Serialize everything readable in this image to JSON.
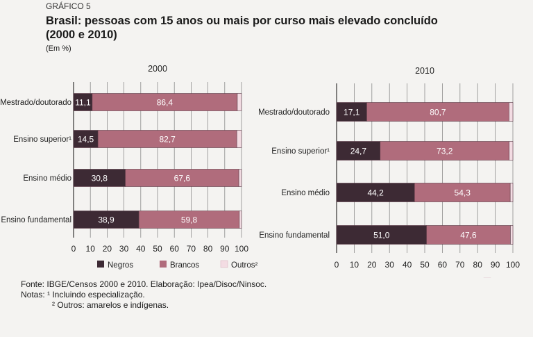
{
  "header": {
    "kicker": "GRÁFICO 5",
    "title_line1": "Brasil: pessoas com 15 anos ou mais por curso mais elevado concluído",
    "title_line2": "(2000 e 2010)",
    "unit": "(Em %)"
  },
  "notes": {
    "source": "Fonte: IBGE/Censos 2000 e 2010. Elaboração: Ipea/Disoc/Ninsoc.",
    "note1": "Notas: ¹ Incluindo especialização.",
    "note2": "² Outros: amarelos e indígenas."
  },
  "colors": {
    "negros": "#3d2a34",
    "brancos": "#b06c7c",
    "outros": "#f3dce3"
  },
  "chart_data": [
    {
      "type": "bar",
      "orientation": "horizontal",
      "stacked": true,
      "title": "2000",
      "categories": [
        "Mestrado/doutorado",
        "Ensino superior¹",
        "Ensino médio",
        "Ensino fundamental"
      ],
      "series": [
        {
          "name": "Negros",
          "values": [
            11.1,
            14.5,
            30.8,
            38.9
          ],
          "labels": [
            "11,1",
            "14,5",
            "30,8",
            "38,9"
          ]
        },
        {
          "name": "Brancos",
          "values": [
            86.4,
            82.7,
            67.6,
            59.8
          ],
          "labels": [
            "86,4",
            "82,7",
            "67,6",
            "59,8"
          ]
        },
        {
          "name": "Outros²",
          "values": [
            2.5,
            2.8,
            1.6,
            1.3
          ]
        }
      ],
      "xlim": [
        0,
        100
      ],
      "xticks": [
        "0",
        "10",
        "20",
        "30",
        "40",
        "50",
        "60",
        "70",
        "80",
        "90",
        "100"
      ],
      "grid": true,
      "legend": "bottom"
    },
    {
      "type": "bar",
      "orientation": "horizontal",
      "stacked": true,
      "title": "2010",
      "categories": [
        "Mestrado/doutorado",
        "Ensino superior¹",
        "Ensino médio",
        "Ensino fundamental"
      ],
      "series": [
        {
          "name": "Negros",
          "values": [
            17.1,
            24.7,
            44.2,
            51.0
          ],
          "labels": [
            "17,1",
            "24,7",
            "44,2",
            "51,0"
          ]
        },
        {
          "name": "Brancos",
          "values": [
            80.7,
            73.2,
            54.3,
            47.6
          ],
          "labels": [
            "80,7",
            "73,2",
            "54,3",
            "47,6"
          ]
        },
        {
          "name": "Outros²",
          "values": [
            2.2,
            2.1,
            1.5,
            1.4
          ]
        }
      ],
      "xlim": [
        0,
        100
      ],
      "xticks": [
        "0",
        "10",
        "20",
        "30",
        "40",
        "50",
        "60",
        "70",
        "80",
        "90",
        "100"
      ],
      "grid": true,
      "legend": "bottom"
    }
  ]
}
